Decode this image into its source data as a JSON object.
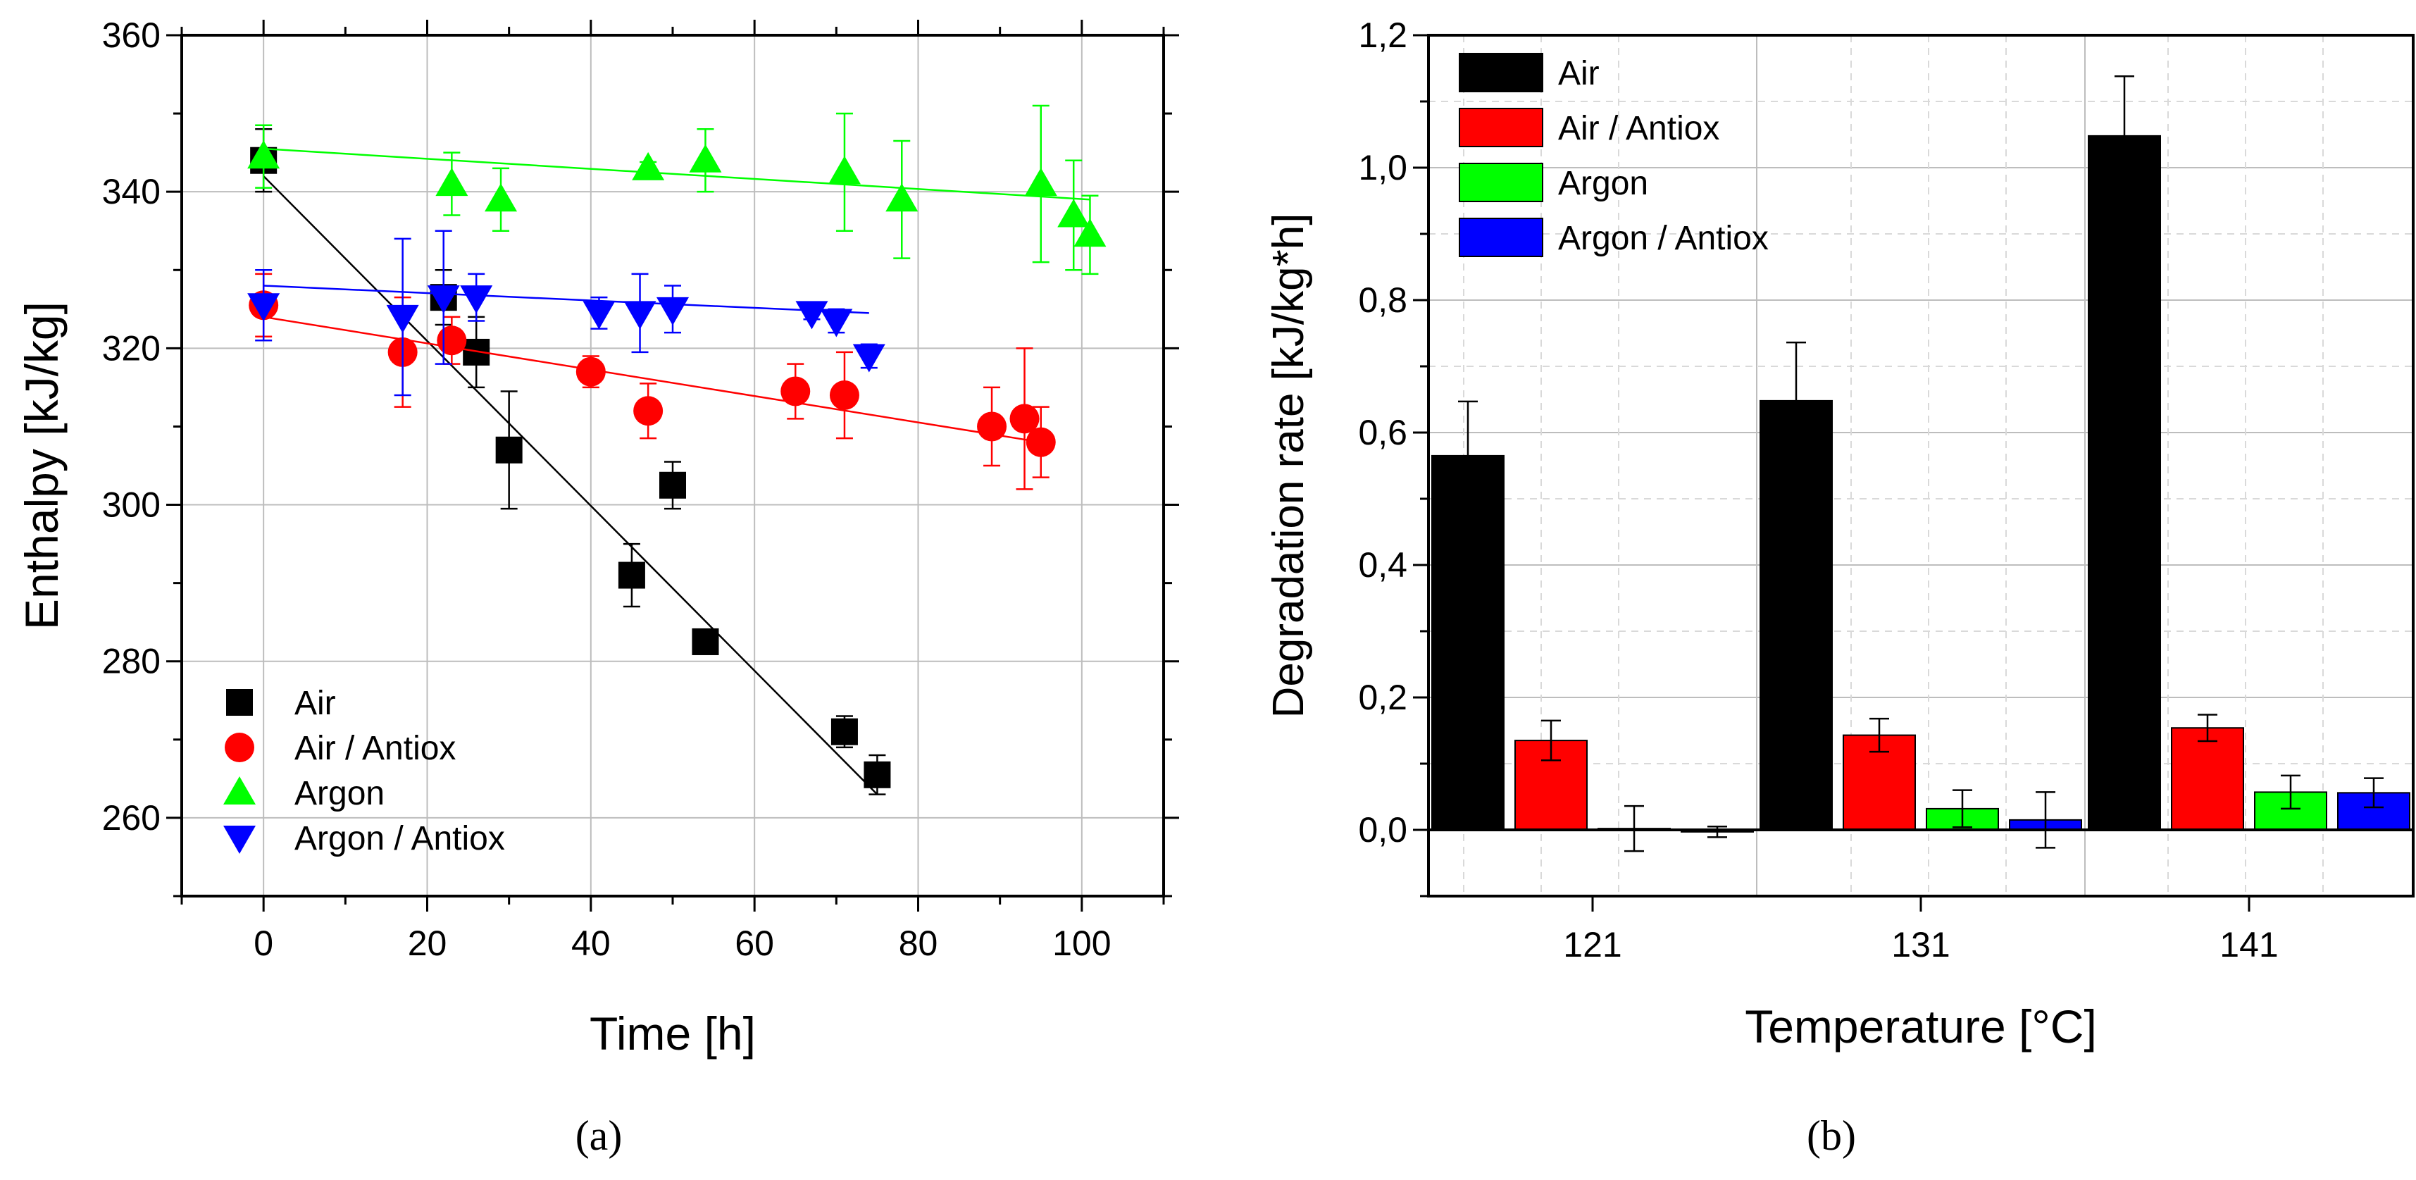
{
  "chart_data": [
    {
      "panel": "a",
      "type": "scatter",
      "xlabel": "Time [h]",
      "ylabel": "Enthalpy [kJ/kg]",
      "xlim": [
        -10,
        110
      ],
      "ylim": [
        250,
        360
      ],
      "xticks": [
        0,
        20,
        40,
        60,
        80,
        100
      ],
      "xtick_labels": [
        "0",
        "20",
        "40",
        "60",
        "80",
        "100"
      ],
      "yticks": [
        260,
        280,
        300,
        320,
        340,
        360
      ],
      "ytick_labels": [
        "260",
        "280",
        "300",
        "320",
        "340",
        "360"
      ],
      "grid": true,
      "legend_position": "bottom-left",
      "series": [
        {
          "name": "Air",
          "marker": "square",
          "color": "#000000",
          "x": [
            0,
            22,
            26,
            30,
            45,
            50,
            54,
            71,
            75
          ],
          "y": [
            344,
            326.5,
            319.5,
            307,
            291,
            302.5,
            282.5,
            271,
            265.5
          ],
          "err": [
            4,
            3.5,
            4.5,
            7.5,
            4,
            3,
            0.8,
            2,
            2.5
          ],
          "fit": [
            [
              0,
              342
            ],
            [
              75,
              263
            ]
          ]
        },
        {
          "name": "Air / Antiox",
          "marker": "circle",
          "color": "#ff0000",
          "x": [
            0,
            17,
            23,
            40,
            47,
            65,
            71,
            89,
            93,
            95
          ],
          "y": [
            325.5,
            319.5,
            321,
            317,
            312,
            314.5,
            314,
            310,
            311,
            308
          ],
          "err": [
            4,
            7,
            3,
            2,
            3.5,
            3.5,
            5.5,
            5,
            9,
            4.5
          ],
          "fit": [
            [
              0,
              324
            ],
            [
              95,
              308
            ]
          ]
        },
        {
          "name": "Argon",
          "marker": "triangle-up",
          "color": "#00ff00",
          "x": [
            0,
            23,
            29,
            47,
            54,
            71,
            78,
            95,
            99,
            101
          ],
          "y": [
            344.5,
            341,
            339,
            343,
            344,
            342.5,
            339,
            341,
            337,
            334.5
          ],
          "err": [
            4,
            4,
            4,
            0.8,
            4,
            7.5,
            7.5,
            10,
            7,
            5
          ],
          "fit": [
            [
              0,
              345.5
            ],
            [
              101,
              339
            ]
          ]
        },
        {
          "name": "Argon / Antiox",
          "marker": "triangle-down",
          "color": "#0000ff",
          "x": [
            0,
            17,
            22,
            26,
            41,
            46,
            50,
            67,
            70,
            74
          ],
          "y": [
            325.5,
            324,
            326.5,
            326.5,
            324.5,
            324.5,
            325,
            324.5,
            323.5,
            319
          ],
          "err": [
            4.5,
            10,
            8.5,
            3,
            2,
            5,
            3,
            0.8,
            1.5,
            1.5
          ],
          "fit": [
            [
              0,
              328
            ],
            [
              74,
              324.5
            ]
          ]
        }
      ]
    },
    {
      "panel": "b",
      "type": "bar",
      "xlabel": "Temperature [°C]",
      "ylabel": "Degradation rate [kJ/kg*h]",
      "categories": [
        "121",
        "131",
        "141"
      ],
      "ylim": [
        -0.1,
        1.2
      ],
      "yticks": [
        0.0,
        0.2,
        0.4,
        0.6,
        0.8,
        1.0,
        1.2
      ],
      "ytick_labels": [
        "0,0",
        "0,2",
        "0,4",
        "0,6",
        "0,8",
        "1,0",
        "1,2"
      ],
      "grid": true,
      "legend_position": "top-left",
      "series": [
        {
          "name": "Air",
          "color": "#000000",
          "values": [
            0.565,
            0.648,
            1.048
          ],
          "err": [
            0.082,
            0.088,
            0.09
          ]
        },
        {
          "name": "Air / Antiox",
          "color": "#ff0000",
          "values": [
            0.135,
            0.143,
            0.154
          ],
          "err": [
            0.03,
            0.025,
            0.02
          ]
        },
        {
          "name": "Argon",
          "color": "#00ff00",
          "values": [
            0.002,
            0.032,
            0.057
          ],
          "err": [
            0.034,
            0.028,
            0.025
          ]
        },
        {
          "name": "Argon / Antiox",
          "color": "#0000ff",
          "values": [
            -0.003,
            0.015,
            0.056
          ],
          "err": [
            0.008,
            0.042,
            0.022
          ]
        }
      ]
    }
  ],
  "captions": {
    "a": "(a)",
    "b": "(b)"
  }
}
